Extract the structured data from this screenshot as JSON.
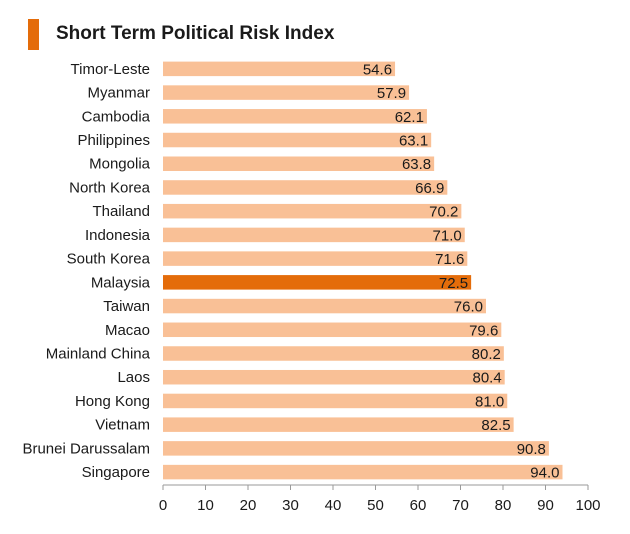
{
  "colors": {
    "bar": "#f9c096",
    "highlight": "#e46c0a",
    "title_accent": "#e46c0a",
    "axis": "#9a9a9a"
  },
  "chart_data": {
    "type": "bar",
    "orientation": "horizontal",
    "title": "Short Term Political Risk Index",
    "categories": [
      "Timor-Leste",
      "Myanmar",
      "Cambodia",
      "Philippines",
      "Mongolia",
      "North Korea",
      "Thailand",
      "Indonesia",
      "South Korea",
      "Malaysia",
      "Taiwan",
      "Macao",
      "Mainland China",
      "Laos",
      "Hong Kong",
      "Vietnam",
      "Brunei Darussalam",
      "Singapore"
    ],
    "values": [
      54.6,
      57.9,
      62.1,
      63.1,
      63.8,
      66.9,
      70.2,
      71.0,
      71.6,
      72.5,
      76.0,
      79.6,
      80.2,
      80.4,
      81.0,
      82.5,
      90.8,
      94.0
    ],
    "value_labels": [
      "54.6",
      "57.9",
      "62.1",
      "63.1",
      "63.8",
      "66.9",
      "70.2",
      "71.0",
      "71.6",
      "72.5",
      "76.0",
      "79.6",
      "80.2",
      "80.4",
      "81.0",
      "82.5",
      "90.8",
      "94.0"
    ],
    "highlight": "Malaysia",
    "xlim": [
      0,
      100
    ],
    "xticks": [
      "0",
      "10",
      "20",
      "30",
      "40",
      "50",
      "60",
      "70",
      "80",
      "90",
      "100"
    ],
    "grid": false,
    "legend": "none"
  }
}
